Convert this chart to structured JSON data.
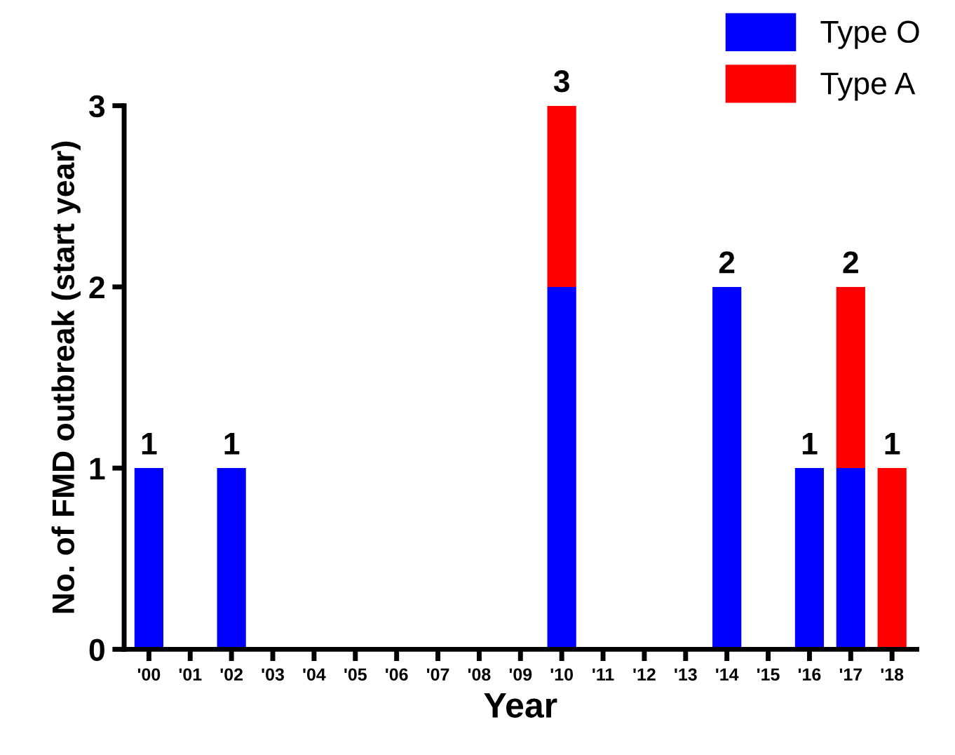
{
  "chart_data": {
    "type": "bar",
    "stacked": true,
    "xlabel": "Year",
    "ylabel": "No. of FMD outbreak (start year)",
    "categories": [
      "'00",
      "'01",
      "'02",
      "'03",
      "'04",
      "'05",
      "'06",
      "'07",
      "'08",
      "'09",
      "'10",
      "'11",
      "'12",
      "'13",
      "'14",
      "'15",
      "'16",
      "'17",
      "'18"
    ],
    "series": [
      {
        "name": "Type O",
        "color": "#0000ff",
        "values": [
          1,
          0,
          1,
          0,
          0,
          0,
          0,
          0,
          0,
          0,
          2,
          0,
          0,
          0,
          2,
          0,
          1,
          1,
          0
        ]
      },
      {
        "name": "Type A",
        "color": "#ff0000",
        "values": [
          0,
          0,
          0,
          0,
          0,
          0,
          0,
          0,
          0,
          0,
          1,
          0,
          0,
          0,
          0,
          0,
          0,
          1,
          1
        ]
      }
    ],
    "totals": [
      "1",
      null,
      "1",
      null,
      null,
      null,
      null,
      null,
      null,
      null,
      "3",
      null,
      null,
      null,
      "2",
      null,
      "1",
      "2",
      "1"
    ],
    "ylim": [
      0,
      3
    ],
    "yticks": [
      0,
      1,
      2,
      3
    ],
    "grid": false,
    "legend": "top right"
  }
}
